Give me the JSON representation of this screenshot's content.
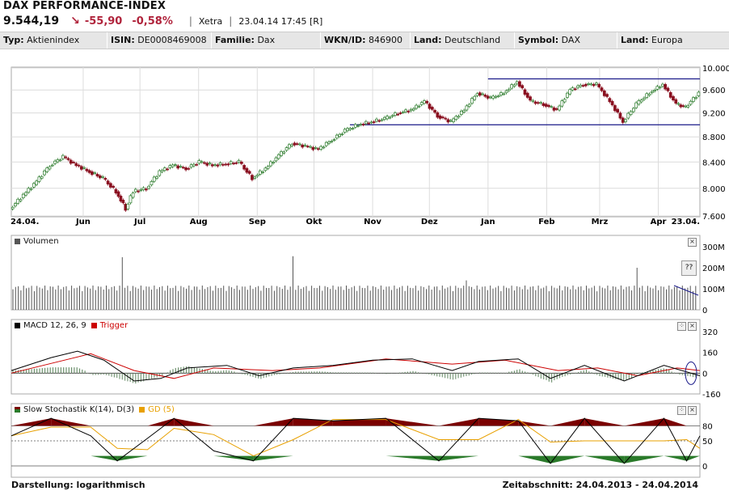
{
  "header": {
    "title": "DAX PERFORMANCE-INDEX",
    "price": "9.544,19",
    "change_abs": "-55,90",
    "change_pct": "-0,58%",
    "exchange": "Xetra",
    "timestamp": "23.04.14 17:45 [R]",
    "arrow_icon": "arrow-down-right-icon",
    "down_color": "#b0243c"
  },
  "info": {
    "typ_label": "Typ:",
    "typ": "Aktienindex",
    "isin_label": "ISIN:",
    "isin": "DE0008469008",
    "familie_label": "Familie:",
    "familie": "Dax",
    "wkn_label": "WKN/ID:",
    "wkn": "846900",
    "land_label": "Land:",
    "land": "Deutschland",
    "symbol_label": "Symbol:",
    "symbol": "DAX",
    "land2_label": "Land:",
    "land2": "Europa"
  },
  "panels": {
    "volume": {
      "title": "Volumen",
      "ticks": [
        "300M",
        "200M",
        "100M",
        "0"
      ]
    },
    "macd": {
      "title": "MACD 12, 26, 9",
      "trigger": "Trigger",
      "ticks": [
        "320",
        "160",
        "0",
        "-160"
      ]
    },
    "stoch": {
      "title": "Slow Stochastik K(14), D(3)",
      "gd": "GD (5)",
      "ticks": [
        "80",
        "50",
        "0"
      ]
    },
    "help_label": "??"
  },
  "footer": {
    "left": "Darstellung: logarithmisch",
    "right": "Zeitabschnitt: 24.04.2013 - 24.04.2014"
  },
  "chart_data": {
    "type": "candlestick",
    "scale": "log",
    "y_ticks": [
      10000,
      9600,
      9200,
      8800,
      8400,
      8000,
      7600
    ],
    "y_tick_labels": [
      "10.000",
      "9.600",
      "9.200",
      "8.800",
      "8.400",
      "8.000",
      "7.600"
    ],
    "ylim": [
      7600,
      10000
    ],
    "x_labels": [
      "24.04.",
      "Jun",
      "Jul",
      "Aug",
      "Sep",
      "Okt",
      "Nov",
      "Dez",
      "Jan",
      "Feb",
      "Mrz",
      "Apr",
      "23.04."
    ],
    "x_dates": [
      "2013-04-24",
      "2013-06-01",
      "2013-07-01",
      "2013-08-01",
      "2013-09-01",
      "2013-10-01",
      "2013-11-01",
      "2013-12-01",
      "2014-01-01",
      "2014-02-01",
      "2014-03-01",
      "2014-04-01",
      "2014-04-23"
    ],
    "close_series": [
      [
        "2013-04-24",
        7700
      ],
      [
        "2013-05-01",
        7900
      ],
      [
        "2013-05-08",
        8100
      ],
      [
        "2013-05-15",
        8350
      ],
      [
        "2013-05-22",
        8480
      ],
      [
        "2013-05-29",
        8350
      ],
      [
        "2013-06-05",
        8250
      ],
      [
        "2013-06-12",
        8150
      ],
      [
        "2013-06-19",
        7950
      ],
      [
        "2013-06-24",
        7700
      ],
      [
        "2013-06-28",
        7950
      ],
      [
        "2013-07-05",
        8000
      ],
      [
        "2013-07-12",
        8250
      ],
      [
        "2013-07-19",
        8350
      ],
      [
        "2013-07-26",
        8300
      ],
      [
        "2013-08-02",
        8400
      ],
      [
        "2013-08-09",
        8350
      ],
      [
        "2013-08-16",
        8370
      ],
      [
        "2013-08-23",
        8400
      ],
      [
        "2013-08-30",
        8150
      ],
      [
        "2013-09-06",
        8300
      ],
      [
        "2013-09-13",
        8500
      ],
      [
        "2013-09-20",
        8700
      ],
      [
        "2013-09-27",
        8650
      ],
      [
        "2013-10-04",
        8600
      ],
      [
        "2013-10-11",
        8750
      ],
      [
        "2013-10-18",
        8900
      ],
      [
        "2013-10-25",
        9000
      ],
      [
        "2013-11-01",
        9050
      ],
      [
        "2013-11-08",
        9100
      ],
      [
        "2013-11-15",
        9200
      ],
      [
        "2013-11-22",
        9250
      ],
      [
        "2013-11-29",
        9400
      ],
      [
        "2013-12-06",
        9150
      ],
      [
        "2013-12-13",
        9050
      ],
      [
        "2013-12-20",
        9250
      ],
      [
        "2013-12-27",
        9550
      ],
      [
        "2014-01-03",
        9450
      ],
      [
        "2014-01-10",
        9550
      ],
      [
        "2014-01-17",
        9750
      ],
      [
        "2014-01-24",
        9400
      ],
      [
        "2014-01-31",
        9350
      ],
      [
        "2014-02-07",
        9250
      ],
      [
        "2014-02-14",
        9600
      ],
      [
        "2014-02-21",
        9700
      ],
      [
        "2014-02-28",
        9700
      ],
      [
        "2014-03-07",
        9400
      ],
      [
        "2014-03-14",
        9050
      ],
      [
        "2014-03-21",
        9350
      ],
      [
        "2014-03-28",
        9550
      ],
      [
        "2014-04-04",
        9700
      ],
      [
        "2014-04-11",
        9350
      ],
      [
        "2014-04-16",
        9300
      ],
      [
        "2014-04-23",
        9544
      ]
    ],
    "channel_lines": [
      {
        "from": [
          "2014-01-01",
          9800
        ],
        "to": [
          "2014-04-23",
          9800
        ]
      },
      {
        "from": [
          "2013-10-20",
          9000
        ],
        "to": [
          "2014-04-23",
          9000
        ]
      }
    ],
    "volume": {
      "ylim": [
        0,
        300
      ],
      "unit": "M",
      "ticks": [
        0,
        100,
        200,
        300
      ],
      "typical": 110,
      "spikes": [
        [
          "2013-06-21",
          250
        ],
        [
          "2013-09-20",
          255
        ],
        [
          "2013-12-20",
          140
        ],
        [
          "2014-03-21",
          200
        ]
      ]
    },
    "macd": {
      "ylim": [
        -160,
        320
      ],
      "ticks": [
        -160,
        0,
        160,
        320
      ],
      "macd": [
        [
          "2013-04-24",
          20
        ],
        [
          "2013-05-15",
          120
        ],
        [
          "2013-05-29",
          170
        ],
        [
          "2013-06-12",
          100
        ],
        [
          "2013-06-28",
          -60
        ],
        [
          "2013-07-12",
          -40
        ],
        [
          "2013-07-26",
          40
        ],
        [
          "2013-08-16",
          60
        ],
        [
          "2013-09-02",
          -20
        ],
        [
          "2013-09-20",
          40
        ],
        [
          "2013-10-11",
          60
        ],
        [
          "2013-11-01",
          100
        ],
        [
          "2013-11-22",
          110
        ],
        [
          "2013-12-13",
          20
        ],
        [
          "2013-12-27",
          90
        ],
        [
          "2014-01-17",
          110
        ],
        [
          "2014-02-03",
          -40
        ],
        [
          "2014-02-21",
          60
        ],
        [
          "2014-03-14",
          -60
        ],
        [
          "2014-04-04",
          60
        ],
        [
          "2014-04-23",
          -20
        ]
      ],
      "trigger": [
        [
          "2013-04-24",
          0
        ],
        [
          "2013-05-22",
          100
        ],
        [
          "2013-06-05",
          150
        ],
        [
          "2013-06-28",
          20
        ],
        [
          "2013-07-19",
          -40
        ],
        [
          "2013-08-09",
          40
        ],
        [
          "2013-09-09",
          20
        ],
        [
          "2013-10-04",
          40
        ],
        [
          "2013-11-08",
          110
        ],
        [
          "2013-12-13",
          70
        ],
        [
          "2014-01-10",
          100
        ],
        [
          "2014-02-07",
          20
        ],
        [
          "2014-02-28",
          40
        ],
        [
          "2014-03-21",
          -20
        ],
        [
          "2014-04-11",
          40
        ],
        [
          "2014-04-23",
          20
        ]
      ],
      "trigger_color": "#cc0000"
    },
    "stochastic": {
      "ylim": [
        0,
        100
      ],
      "ticks": [
        0,
        50,
        80
      ],
      "k": [
        [
          "2013-04-24",
          60
        ],
        [
          "2013-05-15",
          95
        ],
        [
          "2013-06-05",
          60
        ],
        [
          "2013-06-19",
          10
        ],
        [
          "2013-07-05",
          55
        ],
        [
          "2013-07-19",
          95
        ],
        [
          "2013-08-09",
          30
        ],
        [
          "2013-08-30",
          10
        ],
        [
          "2013-09-20",
          95
        ],
        [
          "2013-10-11",
          90
        ],
        [
          "2013-11-08",
          95
        ],
        [
          "2013-12-06",
          10
        ],
        [
          "2013-12-27",
          95
        ],
        [
          "2014-01-17",
          90
        ],
        [
          "2014-02-03",
          5
        ],
        [
          "2014-02-21",
          95
        ],
        [
          "2014-03-14",
          5
        ],
        [
          "2014-04-04",
          95
        ],
        [
          "2014-04-16",
          10
        ],
        [
          "2014-04-23",
          60
        ]
      ],
      "gd_color": "#e8a000",
      "up_fill": "#7a0000",
      "down_fill": "#2a7a2a"
    }
  }
}
